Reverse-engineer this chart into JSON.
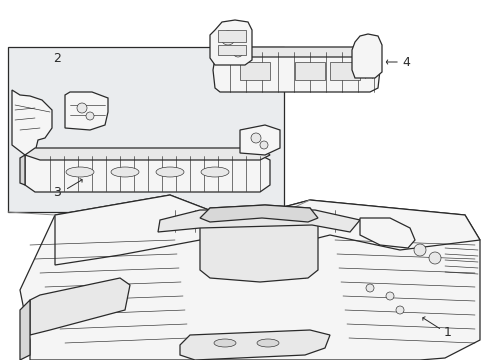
{
  "bg_color": "#ffffff",
  "line_color": "#2a2a2a",
  "fill_light": "#f5f5f5",
  "fill_mid": "#e8e8e8",
  "fill_dark": "#d8d8d8",
  "inset_fill": "#eaecee",
  "lw_main": 0.9,
  "lw_thin": 0.45,
  "lw_thick": 1.2
}
